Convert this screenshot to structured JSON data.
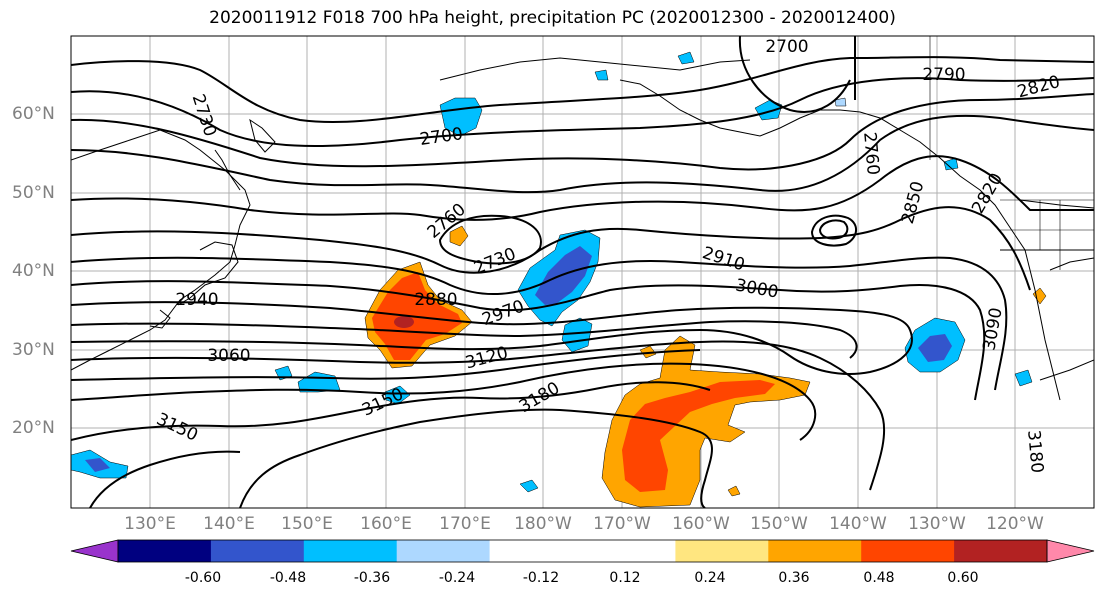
{
  "title": "2020011912 F018 700 hPa height, precipitation PC (2020012300 - 2020012400)",
  "lat_labels": [
    "60°N",
    "50°N",
    "40°N",
    "30°N",
    "20°N"
  ],
  "lon_labels": [
    "130°E",
    "140°E",
    "150°E",
    "160°E",
    "170°E",
    "180°W",
    "170°W",
    "160°W",
    "150°W",
    "140°W",
    "130°W",
    "120°W"
  ],
  "colorbar": {
    "colors": [
      "#9933cc",
      "#000080",
      "#3355cc",
      "#00bfff",
      "#add8ff",
      "#ffffff",
      "#ffffff",
      "#ffe680",
      "#ffa500",
      "#ff4500",
      "#b22222",
      "#ff88aa"
    ],
    "labels": [
      "-0.60",
      "-0.48",
      "-0.36",
      "-0.24",
      "-0.12",
      "0.12",
      "0.24",
      "0.36",
      "0.48",
      "0.60"
    ]
  },
  "contour_labels": [
    {
      "text": "2700",
      "rot": 0
    },
    {
      "text": "2730",
      "rot": 72
    },
    {
      "text": "2700",
      "rot": -8
    },
    {
      "text": "2790",
      "rot": 0
    },
    {
      "text": "2820",
      "rot": -15
    },
    {
      "text": "2760",
      "rot": 85
    },
    {
      "text": "2850",
      "rot": -75
    },
    {
      "text": "2760",
      "rot": -40
    },
    {
      "text": "2730",
      "rot": -22
    },
    {
      "text": "2880",
      "rot": 0
    },
    {
      "text": "2910",
      "rot": 18
    },
    {
      "text": "3000",
      "rot": 10
    },
    {
      "text": "2940",
      "rot": 0
    },
    {
      "text": "2970",
      "rot": -20
    },
    {
      "text": "3060",
      "rot": 0
    },
    {
      "text": "3120",
      "rot": -15
    },
    {
      "text": "3090",
      "rot": -80
    },
    {
      "text": "3150",
      "rot": -25
    },
    {
      "text": "3180",
      "rot": -30
    },
    {
      "text": "3150",
      "rot": 25
    },
    {
      "text": "3180",
      "rot": 85
    },
    {
      "text": "2820",
      "rot": -60
    }
  ]
}
